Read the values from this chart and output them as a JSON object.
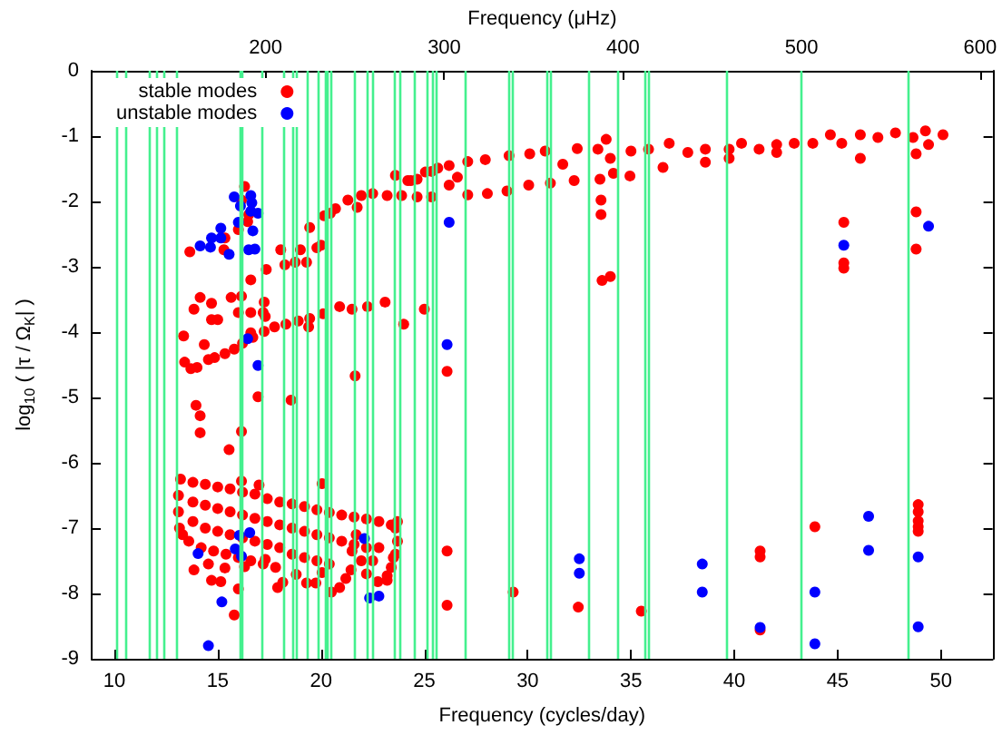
{
  "chart_data": {
    "type": "scatter",
    "xlabel": "Frequency (cycles/day)",
    "x2label": "Frequency (μHz)",
    "ylabel": "log$_{10}$ ( |τ / Ω$_{K}$| )",
    "xlim": [
      8.9,
      52.5
    ],
    "xticks": [
      10,
      15,
      20,
      25,
      30,
      35,
      40,
      45,
      50
    ],
    "x2lim": [
      102.6,
      607
    ],
    "x2ticks": [
      200,
      300,
      400,
      500,
      600
    ],
    "ylim": [
      -9,
      0
    ],
    "yticks": [
      0,
      -1,
      -2,
      -3,
      -4,
      -5,
      -6,
      -7,
      -8,
      -9
    ],
    "legend": "top left",
    "marker": "circle",
    "ref_lines": [
      {
        "axis": "x",
        "value": 10.15,
        "color": "#44f08e"
      },
      {
        "axis": "x",
        "value": 10.55,
        "color": "#44f08e"
      },
      {
        "axis": "x",
        "value": 11.65,
        "color": "#44f08e"
      },
      {
        "axis": "x",
        "value": 12.05,
        "color": "#44f08e"
      },
      {
        "axis": "x",
        "value": 12.4,
        "color": "#44f08e"
      },
      {
        "axis": "x",
        "value": 13.05,
        "color": "#44f08e"
      },
      {
        "axis": "x",
        "value": 16.1,
        "color": "#44f08e"
      },
      {
        "axis": "x",
        "value": 16.2,
        "color": "#44f08e"
      },
      {
        "axis": "x",
        "value": 17.15,
        "color": "#44f08e"
      },
      {
        "axis": "x",
        "value": 18.15,
        "color": "#44f08e"
      },
      {
        "axis": "x",
        "value": 18.65,
        "color": "#44f08e"
      },
      {
        "axis": "x",
        "value": 18.8,
        "color": "#44f08e"
      },
      {
        "axis": "x",
        "value": 19.3,
        "color": "#44f08e"
      },
      {
        "axis": "x",
        "value": 19.9,
        "color": "#44f08e"
      },
      {
        "axis": "x",
        "value": 20.2,
        "color": "#44f08e"
      },
      {
        "axis": "x",
        "value": 20.3,
        "color": "#44f08e"
      },
      {
        "axis": "x",
        "value": 20.45,
        "color": "#44f08e"
      },
      {
        "axis": "x",
        "value": 21.6,
        "color": "#44f08e"
      },
      {
        "axis": "x",
        "value": 22.2,
        "color": "#44f08e"
      },
      {
        "axis": "x",
        "value": 22.5,
        "color": "#44f08e"
      },
      {
        "axis": "x",
        "value": 23.55,
        "color": "#44f08e"
      },
      {
        "axis": "x",
        "value": 23.8,
        "color": "#44f08e"
      },
      {
        "axis": "x",
        "value": 24.55,
        "color": "#44f08e"
      },
      {
        "axis": "x",
        "value": 25.15,
        "color": "#44f08e"
      },
      {
        "axis": "x",
        "value": 25.35,
        "color": "#44f08e"
      },
      {
        "axis": "x",
        "value": 25.55,
        "color": "#44f08e"
      },
      {
        "axis": "x",
        "value": 26.95,
        "color": "#44f08e"
      },
      {
        "axis": "x",
        "value": 29.1,
        "color": "#44f08e"
      },
      {
        "axis": "x",
        "value": 29.3,
        "color": "#44f08e"
      },
      {
        "axis": "x",
        "value": 30.95,
        "color": "#44f08e"
      },
      {
        "axis": "x",
        "value": 31.1,
        "color": "#44f08e"
      },
      {
        "axis": "x",
        "value": 32.95,
        "color": "#44f08e"
      },
      {
        "axis": "x",
        "value": 34.35,
        "color": "#44f08e"
      },
      {
        "axis": "x",
        "value": 35.65,
        "color": "#44f08e"
      },
      {
        "axis": "x",
        "value": 35.85,
        "color": "#44f08e"
      },
      {
        "axis": "x",
        "value": 39.6,
        "color": "#44f08e"
      },
      {
        "axis": "x",
        "value": 43.25,
        "color": "#44f08e"
      },
      {
        "axis": "x",
        "value": 48.4,
        "color": "#44f08e"
      }
    ],
    "series": [
      {
        "name": "stable modes",
        "color": "#ff0000",
        "x": [
          16.3,
          13.65,
          16.15,
          16.45,
          16.0,
          15.35,
          15.3,
          16.5,
          17.35,
          18.05,
          18.25,
          18.75,
          19.0,
          19.3,
          19.45,
          19.8,
          20.0,
          20.15,
          20.45,
          20.7,
          21.3,
          21.75,
          21.95,
          22.5,
          23.2,
          23.6,
          24.2,
          24.65,
          23.9,
          24.65,
          25.35,
          25.05,
          25.65,
          16.6,
          14.15,
          13.85,
          14.7,
          14.7,
          15.0,
          15.65,
          16.15,
          16.0,
          16.6,
          17.25,
          17.2,
          17.3,
          16.6,
          13.35,
          13.4,
          13.7,
          14.0,
          14.35,
          14.55,
          14.85,
          15.35,
          15.8,
          16.2,
          16.7,
          17.25,
          17.75,
          18.3,
          18.9,
          19.45,
          20.1,
          20.9,
          21.5,
          22.25,
          23.1,
          24.0,
          25.0,
          19.4,
          18.55,
          16.95,
          21.65,
          13.95,
          14.15,
          14.15,
          16.15,
          15.55,
          16.15,
          17.0,
          20.05,
          13.2,
          13.8,
          14.4,
          15.0,
          15.6,
          16.2,
          16.8,
          17.4,
          18.0,
          18.6,
          19.2,
          19.8,
          20.4,
          21.0,
          21.6,
          22.2,
          22.8,
          23.4,
          23.7,
          13.1,
          13.1,
          13.15,
          13.3,
          13.8,
          14.4,
          15.0,
          15.6,
          16.2,
          16.8,
          17.4,
          18.0,
          18.6,
          19.2,
          19.8,
          20.4,
          21.0,
          21.6,
          22.2,
          13.8,
          14.4,
          15.0,
          15.6,
          16.2,
          16.8,
          17.4,
          18.0,
          18.6,
          19.2,
          19.8,
          20.4,
          13.6,
          14.2,
          14.8,
          15.4,
          16.0,
          16.6,
          17.2,
          17.8,
          23.7,
          23.6,
          23.4,
          23.2,
          22.8,
          22.5,
          22.2,
          21.7,
          21.5,
          13.85,
          14.55,
          14.7,
          15.15,
          15.35,
          16.0,
          15.8,
          16.3,
          17.3,
          17.9,
          18.15,
          18.8,
          19.3,
          19.75,
          20.05,
          20.5,
          20.9,
          21.2,
          21.45,
          21.95,
          22.75,
          23.2,
          23.5,
          23.6,
          24.35,
          25.35,
          26.2,
          27.1,
          27.95,
          29.1,
          30.1,
          30.85,
          31.7,
          32.4,
          33.4,
          33.8,
          34.0,
          34.15,
          35.0,
          35.85,
          36.55,
          36.85,
          37.75,
          38.6,
          38.6,
          39.75,
          39.75,
          40.35,
          41.2,
          42.05,
          42.05,
          42.9,
          43.8,
          44.65,
          45.2,
          46.1,
          46.1,
          46.95,
          47.8,
          48.65,
          49.25,
          50.1,
          48.8,
          49.4,
          27.1,
          28.05,
          29.0,
          30.05,
          31.1,
          32.25,
          33.5,
          34.95,
          26.2,
          26.6,
          33.55,
          33.55,
          33.6,
          34.0,
          45.3,
          45.3,
          45.3,
          48.8,
          48.8,
          26.1,
          26.1,
          26.1,
          29.3,
          32.45,
          35.5,
          41.25,
          41.25,
          41.25,
          43.9,
          48.9,
          48.9,
          48.9,
          48.9,
          48.9
        ],
        "values": [
          -1.77,
          -2.77,
          -1.98,
          -2.31,
          -2.43,
          -2.56,
          -2.74,
          -2.2,
          -3.04,
          -2.74,
          -2.97,
          -2.93,
          -2.74,
          -2.93,
          -2.4,
          -2.71,
          -2.67,
          -2.22,
          -2.18,
          -2.11,
          -1.98,
          -2.09,
          -1.91,
          -1.88,
          -1.91,
          -1.6,
          -1.68,
          -1.66,
          -1.91,
          -1.93,
          -1.93,
          -1.55,
          -1.49,
          -3.2,
          -3.47,
          -3.65,
          -3.56,
          -3.81,
          -3.81,
          -3.47,
          -3.45,
          -3.7,
          -3.7,
          -3.54,
          -3.7,
          -3.76,
          -4.01,
          -4.06,
          -4.46,
          -4.56,
          -4.54,
          -4.19,
          -4.42,
          -4.39,
          -4.33,
          -4.26,
          -4.17,
          -4.08,
          -3.99,
          -3.92,
          -3.88,
          -3.83,
          -3.79,
          -3.72,
          -3.61,
          -3.65,
          -3.61,
          -3.54,
          -3.88,
          -3.65,
          -3.92,
          -5.04,
          -4.99,
          -4.67,
          -5.12,
          -5.28,
          -5.54,
          -5.52,
          -5.8,
          -6.28,
          -6.34,
          -6.32,
          -6.25,
          -6.3,
          -6.33,
          -6.37,
          -6.4,
          -6.45,
          -6.48,
          -6.55,
          -6.6,
          -6.63,
          -6.67,
          -6.72,
          -6.76,
          -6.8,
          -6.83,
          -6.86,
          -6.9,
          -6.95,
          -6.9,
          -6.5,
          -6.75,
          -7.0,
          -7.1,
          -6.6,
          -6.65,
          -6.7,
          -6.75,
          -6.8,
          -6.85,
          -6.9,
          -6.95,
          -7.0,
          -7.05,
          -7.1,
          -7.15,
          -7.2,
          -7.25,
          -7.3,
          -6.9,
          -7.0,
          -7.05,
          -7.1,
          -7.15,
          -7.2,
          -7.25,
          -7.3,
          -7.4,
          -7.45,
          -7.5,
          -7.55,
          -7.2,
          -7.3,
          -7.35,
          -7.4,
          -7.45,
          -7.5,
          -7.55,
          -7.6,
          -7.2,
          -7.4,
          -7.6,
          -7.8,
          -7.3,
          -7.5,
          -7.7,
          -7.1,
          -7.35,
          -7.64,
          -7.55,
          -7.8,
          -7.82,
          -7.61,
          -7.93,
          -8.33,
          -7.59,
          -7.48,
          -7.91,
          -7.83,
          -7.71,
          -7.84,
          -7.84,
          -7.68,
          -7.98,
          -7.91,
          -7.77,
          -7.64,
          -7.5,
          -7.82,
          -7.73,
          -7.45,
          -7.0,
          -1.68,
          -1.54,
          -1.45,
          -1.39,
          -1.36,
          -1.3,
          -1.27,
          -1.23,
          -1.43,
          -1.19,
          -1.2,
          -1.05,
          -1.34,
          -1.57,
          -1.23,
          -1.2,
          -1.48,
          -1.11,
          -1.25,
          -1.2,
          -1.4,
          -1.2,
          -1.34,
          -1.11,
          -1.2,
          -1.13,
          -1.25,
          -1.11,
          -1.11,
          -0.98,
          -1.11,
          -1.34,
          -0.98,
          -1.02,
          -0.95,
          -1.02,
          -0.92,
          -0.98,
          -1.27,
          -1.13,
          -1.9,
          -1.88,
          -1.84,
          -1.75,
          -1.72,
          -1.68,
          -1.66,
          -1.61,
          -1.75,
          -1.63,
          -1.98,
          -2.2,
          -3.21,
          -3.15,
          -2.32,
          -2.94,
          -3.02,
          -2.16,
          -2.73,
          -4.6,
          -7.35,
          -8.18,
          -7.98,
          -8.21,
          -8.27,
          -7.35,
          -7.44,
          -8.56,
          -6.98,
          -6.64,
          -6.75,
          -6.89,
          -6.98,
          -7.05
        ]
      },
      {
        "name": "unstable modes",
        "color": "#0000ff",
        "x": [
          15.8,
          16.1,
          16.6,
          16.65,
          16.6,
          16.95,
          16.0,
          16.7,
          15.15,
          14.7,
          15.15,
          14.15,
          14.65,
          15.55,
          16.5,
          16.8,
          16.45,
          16.95,
          14.05,
          15.85,
          16.05,
          16.55,
          16.15,
          22.1,
          15.2,
          22.35,
          22.8,
          14.55,
          26.2,
          45.3,
          49.4,
          26.1,
          32.5,
          32.5,
          38.45,
          38.45,
          41.25,
          43.9,
          43.9,
          46.5,
          46.5,
          48.9,
          48.9
        ],
        "values": [
          -1.93,
          -2.07,
          -1.91,
          -2.02,
          -2.15,
          -2.18,
          -2.32,
          -2.45,
          -2.41,
          -2.56,
          -2.56,
          -2.68,
          -2.7,
          -2.81,
          -2.74,
          -2.73,
          -4.1,
          -4.51,
          -7.39,
          -7.32,
          -7.11,
          -7.07,
          -7.43,
          -7.16,
          -8.13,
          -8.07,
          -8.04,
          -8.8,
          -2.32,
          -2.67,
          -2.38,
          -4.19,
          -7.47,
          -7.69,
          -7.55,
          -7.98,
          -8.52,
          -7.98,
          -8.77,
          -6.82,
          -7.34,
          -7.44,
          -8.51
        ]
      }
    ]
  }
}
